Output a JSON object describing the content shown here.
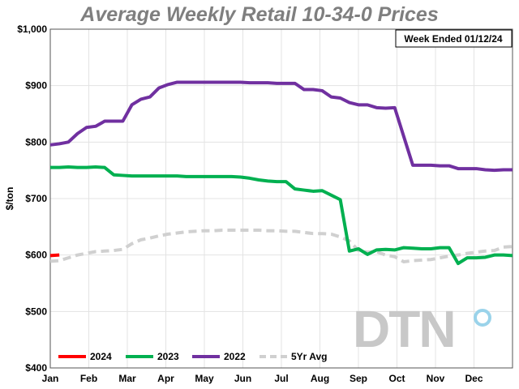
{
  "chart_data": {
    "type": "line",
    "title": "Average Weekly Retail 10-34-0 Prices",
    "annotation": "Week Ended 01/12/24",
    "ylabel": "$/ton",
    "xlabel": "",
    "ylim": [
      400,
      1000
    ],
    "yticks": [
      "$400",
      "$500",
      "$600",
      "$700",
      "$800",
      "$900",
      "$1,000"
    ],
    "xticks": [
      "Jan",
      "Feb",
      "Mar",
      "Apr",
      "May",
      "Jun",
      "Jul",
      "Aug",
      "Sep",
      "Oct",
      "Nov",
      "Dec"
    ],
    "grid": true,
    "legend_position": "bottom",
    "watermark": "DTN",
    "series": [
      {
        "name": "2024",
        "color": "#ff0000",
        "dashed": false,
        "values": [
          599,
          600
        ]
      },
      {
        "name": "2023",
        "color": "#00b050",
        "dashed": false,
        "values": [
          755,
          755,
          756,
          755,
          755,
          756,
          755,
          742,
          741,
          740,
          740,
          740,
          740,
          740,
          740,
          739,
          739,
          739,
          739,
          739,
          739,
          738,
          736,
          733,
          731,
          730,
          730,
          717,
          715,
          713,
          714,
          706,
          698,
          607,
          611,
          601,
          609,
          610,
          609,
          613,
          612,
          611,
          611,
          613,
          613,
          585,
          595,
          595,
          596,
          600,
          600,
          599
        ]
      },
      {
        "name": "2022",
        "color": "#7030a0",
        "dashed": false,
        "values": [
          795,
          797,
          800,
          815,
          826,
          828,
          837,
          837,
          837,
          866,
          876,
          880,
          896,
          902,
          906,
          906,
          906,
          906,
          906,
          906,
          906,
          906,
          905,
          905,
          905,
          904,
          904,
          904,
          893,
          893,
          891,
          880,
          878,
          870,
          866,
          866,
          861,
          860,
          861,
          810,
          759,
          759,
          759,
          758,
          758,
          753,
          753,
          753,
          751,
          750,
          751,
          751
        ]
      },
      {
        "name": "5Yr Avg",
        "color": "#d0d0d0",
        "dashed": true,
        "values": [
          589,
          590,
          595,
          600,
          603,
          606,
          607,
          608,
          610,
          620,
          627,
          630,
          634,
          637,
          639,
          641,
          642,
          643,
          643,
          644,
          644,
          644,
          644,
          644,
          643,
          643,
          642,
          642,
          640,
          638,
          638,
          637,
          632,
          625,
          608,
          605,
          606,
          600,
          597,
          588,
          590,
          591,
          592,
          595,
          598,
          600,
          603,
          605,
          607,
          608,
          614,
          615
        ]
      }
    ]
  }
}
